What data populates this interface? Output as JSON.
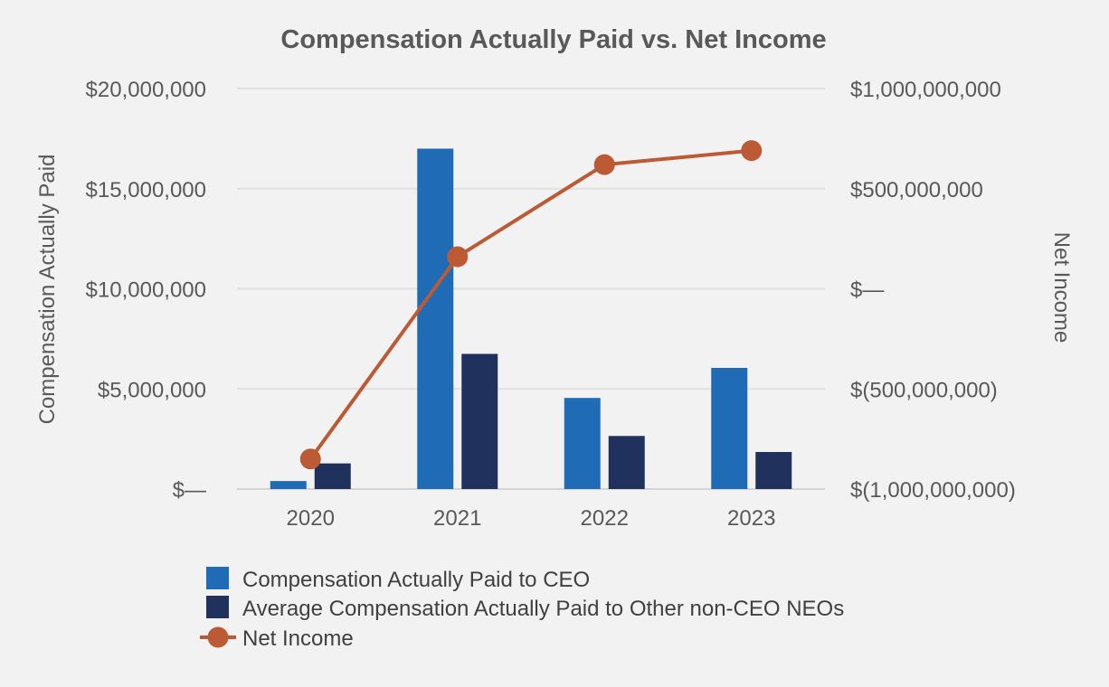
{
  "chart_data": {
    "type": "bar+line",
    "title": "Compensation Actually Paid vs. Net Income",
    "categories": [
      "2020",
      "2021",
      "2022",
      "2023"
    ],
    "y_left": {
      "label": "Compensation Actually Paid",
      "range": [
        0,
        20000000
      ],
      "ticks": [
        0,
        5000000,
        10000000,
        15000000,
        20000000
      ],
      "tick_labels": [
        "$—",
        "$5,000,000",
        "$10,000,000",
        "$15,000,000",
        "$20,000,000"
      ]
    },
    "y_right": {
      "label": "Net Income",
      "range": [
        -1000000000,
        1000000000
      ],
      "ticks": [
        -1000000000,
        -500000000,
        0,
        500000000,
        1000000000
      ],
      "tick_labels": [
        "$(1,000,000,000)",
        "$(500,000,000)",
        "$—",
        "$500,000,000",
        "$1,000,000,000"
      ]
    },
    "series": [
      {
        "name": "Compensation Actually Paid to CEO",
        "type": "bar",
        "axis": "left",
        "color": "#1f6bb5",
        "values": [
          400000,
          17000000,
          4550000,
          6050000
        ]
      },
      {
        "name": "Average Compensation Actually Paid to Other non-CEO NEOs",
        "type": "bar",
        "axis": "left",
        "color": "#1f315c",
        "values": [
          1280000,
          6750000,
          2650000,
          1850000
        ]
      },
      {
        "name": "Net Income",
        "type": "line",
        "axis": "right",
        "color": "#bb5a35",
        "values": [
          -850000000,
          160000000,
          620000000,
          690000000
        ]
      }
    ],
    "grid": true,
    "legend_position": "bottom"
  }
}
